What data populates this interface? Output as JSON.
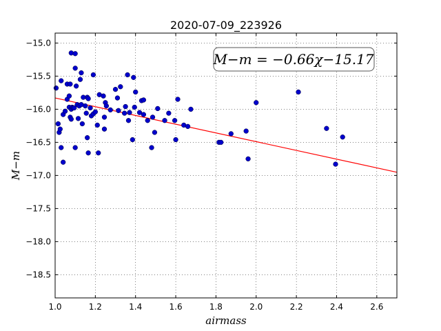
{
  "chart_data": {
    "type": "scatter",
    "title": "2020-07-09_223926",
    "xlabel": "airmass",
    "ylabel": "M−m",
    "xlim": [
      1.0,
      2.7
    ],
    "ylim": [
      -14.85,
      -18.85
    ],
    "y_inverted": true,
    "grid": true,
    "x_ticks": [
      1.0,
      1.2,
      1.4,
      1.6,
      1.8,
      2.0,
      2.2,
      2.4,
      2.6
    ],
    "x_tick_labels": [
      "1.0",
      "1.2",
      "1.4",
      "1.6",
      "1.8",
      "2.0",
      "2.2",
      "2.4",
      "2.6"
    ],
    "y_ticks": [
      -15.0,
      -15.5,
      -16.0,
      -16.5,
      -17.0,
      -17.5,
      -18.0,
      -18.5
    ],
    "y_tick_labels": [
      "−15.0",
      "−15.5",
      "−16.0",
      "−16.5",
      "−17.0",
      "−17.5",
      "−18.0",
      "−18.5"
    ],
    "annotation": "M−m = −0.66χ−15.17",
    "fit": {
      "slope": -0.66,
      "intercept": -15.17,
      "color": "#ff0000"
    },
    "marker_color": "#0000cc",
    "points": [
      [
        1.005,
        -15.68
      ],
      [
        1.015,
        -16.22
      ],
      [
        1.02,
        -16.35
      ],
      [
        1.025,
        -16.3
      ],
      [
        1.03,
        -15.57
      ],
      [
        1.03,
        -16.58
      ],
      [
        1.04,
        -16.8
      ],
      [
        1.04,
        -16.08
      ],
      [
        1.05,
        -16.03
      ],
      [
        1.06,
        -15.62
      ],
      [
        1.06,
        -15.85
      ],
      [
        1.07,
        -15.8
      ],
      [
        1.07,
        -15.97
      ],
      [
        1.075,
        -16.12
      ],
      [
        1.075,
        -15.62
      ],
      [
        1.08,
        -15.15
      ],
      [
        1.08,
        -16.15
      ],
      [
        1.08,
        -16.0
      ],
      [
        1.085,
        -15.97
      ],
      [
        1.09,
        -15.98
      ],
      [
        1.095,
        -15.98
      ],
      [
        1.1,
        -15.38
      ],
      [
        1.1,
        -16.58
      ],
      [
        1.1,
        -15.16
      ],
      [
        1.105,
        -15.65
      ],
      [
        1.11,
        -15.93
      ],
      [
        1.115,
        -16.14
      ],
      [
        1.12,
        -15.95
      ],
      [
        1.125,
        -15.55
      ],
      [
        1.13,
        -15.45
      ],
      [
        1.13,
        -15.93
      ],
      [
        1.135,
        -16.22
      ],
      [
        1.14,
        -15.82
      ],
      [
        1.15,
        -15.95
      ],
      [
        1.155,
        -16.06
      ],
      [
        1.16,
        -15.82
      ],
      [
        1.16,
        -16.43
      ],
      [
        1.165,
        -16.66
      ],
      [
        1.165,
        -15.84
      ],
      [
        1.175,
        -15.98
      ],
      [
        1.18,
        -16.1
      ],
      [
        1.19,
        -15.48
      ],
      [
        1.19,
        -16.07
      ],
      [
        1.2,
        -16.04
      ],
      [
        1.21,
        -16.24
      ],
      [
        1.215,
        -16.66
      ],
      [
        1.22,
        -15.78
      ],
      [
        1.24,
        -15.8
      ],
      [
        1.245,
        -16.3
      ],
      [
        1.245,
        -16.12
      ],
      [
        1.25,
        -15.9
      ],
      [
        1.255,
        -15.95
      ],
      [
        1.275,
        -16.01
      ],
      [
        1.3,
        -15.7
      ],
      [
        1.31,
        -15.83
      ],
      [
        1.315,
        -16.02
      ],
      [
        1.325,
        -15.66
      ],
      [
        1.345,
        -16.06
      ],
      [
        1.35,
        -15.96
      ],
      [
        1.36,
        -15.48
      ],
      [
        1.365,
        -16.17
      ],
      [
        1.37,
        -16.05
      ],
      [
        1.385,
        -16.46
      ],
      [
        1.39,
        -15.52
      ],
      [
        1.395,
        -15.97
      ],
      [
        1.4,
        -15.74
      ],
      [
        1.42,
        -16.05
      ],
      [
        1.43,
        -15.87
      ],
      [
        1.44,
        -15.86
      ],
      [
        1.44,
        -16.08
      ],
      [
        1.46,
        -16.17
      ],
      [
        1.48,
        -16.58
      ],
      [
        1.485,
        -16.12
      ],
      [
        1.495,
        -16.35
      ],
      [
        1.51,
        -15.99
      ],
      [
        1.545,
        -16.17
      ],
      [
        1.565,
        -16.06
      ],
      [
        1.595,
        -16.17
      ],
      [
        1.6,
        -16.46
      ],
      [
        1.61,
        -15.85
      ],
      [
        1.64,
        -16.24
      ],
      [
        1.66,
        -16.26
      ],
      [
        1.675,
        -16.0
      ],
      [
        1.815,
        -16.5
      ],
      [
        1.825,
        -16.5
      ],
      [
        1.875,
        -16.37
      ],
      [
        1.95,
        -16.33
      ],
      [
        1.96,
        -16.75
      ],
      [
        2.0,
        -15.9
      ],
      [
        2.21,
        -15.74
      ],
      [
        2.35,
        -16.29
      ],
      [
        2.395,
        -16.83
      ],
      [
        2.43,
        -16.42
      ]
    ]
  }
}
